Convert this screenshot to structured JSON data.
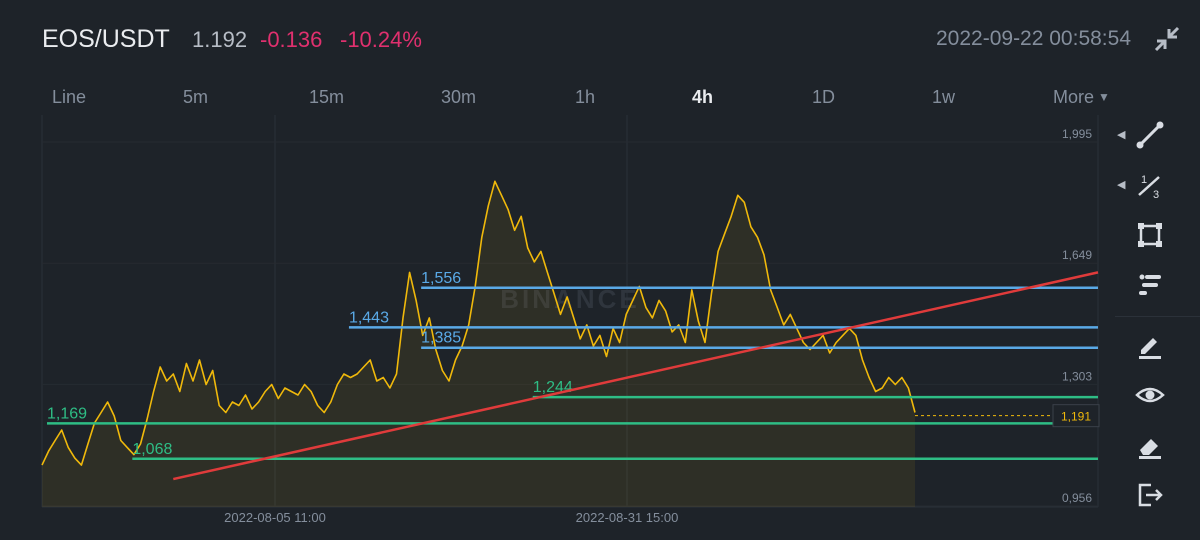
{
  "header": {
    "pair": "EOS/USDT",
    "last_price": "1.192",
    "change": "-0.136",
    "change_percent": "-10.24%",
    "datetime": "2022-09-22 00:58:54",
    "change_color": "#e0306e"
  },
  "tabs": [
    {
      "label": "Line"
    },
    {
      "label": "5m"
    },
    {
      "label": "15m"
    },
    {
      "label": "30m"
    },
    {
      "label": "1h"
    },
    {
      "label": "4h",
      "active": true
    },
    {
      "label": "1D"
    },
    {
      "label": "1w"
    },
    {
      "label": "More",
      "dropdown": true
    }
  ],
  "icons": {
    "collapse": "collapse-icon",
    "tools": [
      "trendline-tool-icon",
      "fibonacci-tool-icon",
      "rectangle-tool-icon",
      "position-tool-icon",
      "brush-icon",
      "visibility-eye-icon",
      "eraser-icon",
      "exit-icon"
    ]
  },
  "chart_data": {
    "type": "line",
    "ylim": [
      0.93,
      2.05
    ],
    "y_ticks": [
      "1,995",
      "1,649",
      "1,303",
      "0,956"
    ],
    "y_tick_values": [
      1.995,
      1.649,
      1.303,
      0.956
    ],
    "x_ticks": [
      "2022-08-05 11:00",
      "2022-08-31 15:00"
    ],
    "x_tick_index": [
      50,
      125
    ],
    "current_price_label": "1,191",
    "current_price": 1.191,
    "colors": {
      "line": "#f0b90b",
      "support": "#2ebd85",
      "resistance": "#5aa9e6",
      "trend": "#e03b3b"
    },
    "series": [
      {
        "values": [
          1.05,
          1.09,
          1.12,
          1.15,
          1.1,
          1.07,
          1.05,
          1.11,
          1.17,
          1.2,
          1.23,
          1.19,
          1.12,
          1.1,
          1.08,
          1.11,
          1.18,
          1.26,
          1.33,
          1.29,
          1.31,
          1.26,
          1.34,
          1.29,
          1.35,
          1.28,
          1.32,
          1.22,
          1.2,
          1.23,
          1.22,
          1.25,
          1.21,
          1.23,
          1.26,
          1.28,
          1.24,
          1.27,
          1.26,
          1.25,
          1.28,
          1.26,
          1.22,
          1.2,
          1.23,
          1.28,
          1.31,
          1.3,
          1.31,
          1.33,
          1.35,
          1.29,
          1.3,
          1.27,
          1.31,
          1.47,
          1.6,
          1.52,
          1.42,
          1.47,
          1.38,
          1.32,
          1.29,
          1.35,
          1.39,
          1.45,
          1.56,
          1.7,
          1.79,
          1.86,
          1.82,
          1.78,
          1.72,
          1.76,
          1.67,
          1.63,
          1.66,
          1.6,
          1.54,
          1.48,
          1.53,
          1.47,
          1.41,
          1.45,
          1.39,
          1.42,
          1.36,
          1.44,
          1.4,
          1.48,
          1.52,
          1.56,
          1.5,
          1.47,
          1.52,
          1.49,
          1.43,
          1.45,
          1.4,
          1.55,
          1.46,
          1.4,
          1.54,
          1.66,
          1.71,
          1.76,
          1.82,
          1.8,
          1.73,
          1.7,
          1.65,
          1.55,
          1.5,
          1.45,
          1.48,
          1.44,
          1.4,
          1.38,
          1.4,
          1.42,
          1.37,
          1.4,
          1.42,
          1.44,
          1.42,
          1.35,
          1.3,
          1.26,
          1.27,
          1.3,
          1.28,
          1.3,
          1.27,
          1.2
        ]
      }
    ],
    "horizontal_levels": [
      {
        "label": "1,556",
        "value": 1.556,
        "color": "resistance",
        "x_start_index": 57
      },
      {
        "label": "1,443",
        "value": 1.443,
        "color": "resistance",
        "x_start_index": 46
      },
      {
        "label": "1,385",
        "value": 1.385,
        "color": "resistance",
        "x_start_index": 57
      },
      {
        "label": "1,244",
        "value": 1.244,
        "color": "support",
        "x_start_index": 74
      },
      {
        "label": "1,169",
        "value": 1.169,
        "color": "support",
        "x_start_index": 0
      },
      {
        "label": "1,068",
        "value": 1.068,
        "color": "support",
        "x_start_index": 13
      }
    ],
    "trendline": {
      "start_index": 20,
      "start_value": 1.01,
      "end_value_at_right_edge": 1.6
    }
  }
}
